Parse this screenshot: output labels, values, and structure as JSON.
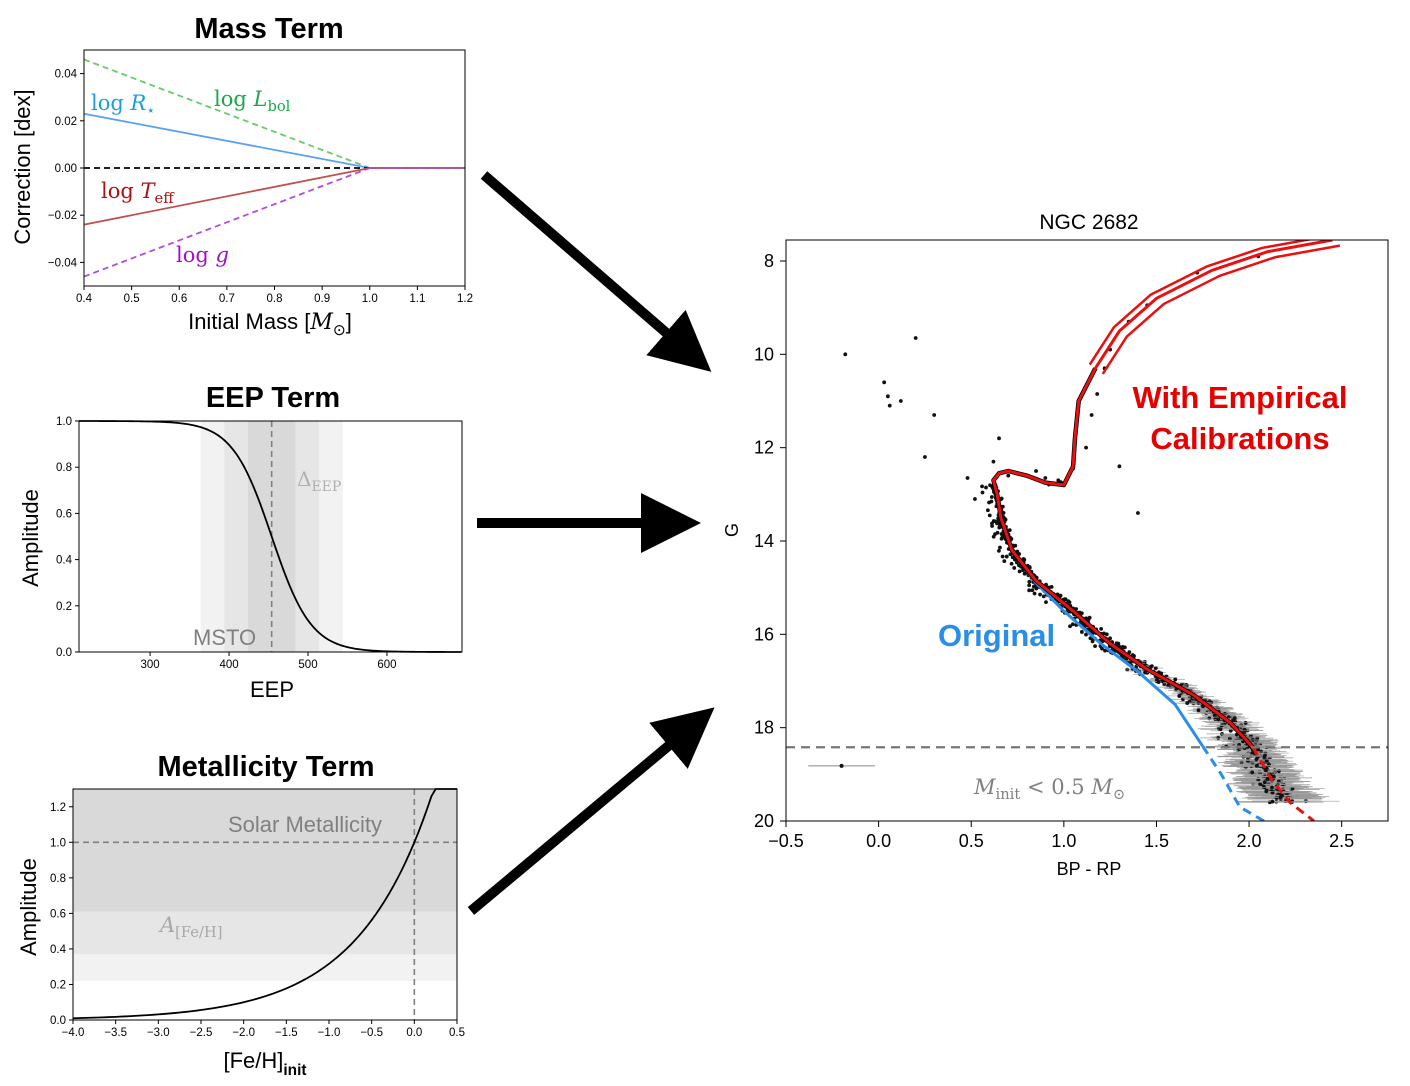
{
  "colors": {
    "blue_line": "#5aa0f0",
    "green_dash": "#66cc66",
    "red_line": "#c0504d",
    "purple_dash": "#b44be0",
    "label_blue": "#1a9fe0",
    "label_green": "#1aa84a",
    "label_red": "#b01010",
    "label_purple": "#a010c8",
    "iso_red": "#e81010",
    "iso_blue": "#2a8de8",
    "annot_red": "#e60000",
    "annot_blue": "#2a8de8"
  },
  "arrows": [
    {
      "name": "mass-to-cmd-arrow"
    },
    {
      "name": "eep-to-cmd-arrow"
    },
    {
      "name": "metallicity-to-cmd-arrow"
    }
  ],
  "chart_data": [
    {
      "id": "mass",
      "type": "line",
      "title": "Mass Term",
      "xlabel": "Initial Mass [M⊙]",
      "xlabel_main": "Initial Mass [",
      "xlabel_sym": "M",
      "xlabel_sub": "⊙",
      "xlabel_end": "]",
      "ylabel": "Correction [dex]",
      "xlim": [
        0.4,
        1.2
      ],
      "ylim": [
        -0.05,
        0.05
      ],
      "xticks": [
        "0.4",
        "0.5",
        "0.6",
        "0.7",
        "0.8",
        "0.9",
        "1.0",
        "1.1",
        "1.2"
      ],
      "yticks": [
        "−0.04",
        "−0.02",
        "0.00",
        "0.02",
        "0.04"
      ],
      "series": [
        {
          "name": "log L_bol",
          "x": [
            0.4,
            1.0,
            1.2
          ],
          "y": [
            0.046,
            0.0,
            0.0
          ],
          "style": "dashed",
          "color_key": "green_dash"
        },
        {
          "name": "log R_⋆",
          "x": [
            0.4,
            1.0,
            1.2
          ],
          "y": [
            0.023,
            0.0,
            0.0
          ],
          "style": "solid",
          "color_key": "blue_line"
        },
        {
          "name": "zero",
          "x": [
            0.4,
            1.2
          ],
          "y": [
            0.0,
            0.0
          ],
          "style": "dashed",
          "color_key": "black"
        },
        {
          "name": "log T_eff",
          "x": [
            0.4,
            1.0,
            1.2
          ],
          "y": [
            -0.024,
            0.0,
            0.0
          ],
          "style": "solid",
          "color_key": "red_line"
        },
        {
          "name": "log g",
          "x": [
            0.4,
            1.0,
            1.2
          ],
          "y": [
            -0.046,
            0.0,
            0.0
          ],
          "style": "dashed",
          "color_key": "purple_dash"
        }
      ],
      "annotations": [
        {
          "id": "lbol",
          "main": "log ",
          "sym": "L",
          "sub": "bol",
          "color_key": "label_green"
        },
        {
          "id": "rstar",
          "main": "log ",
          "sym": "R",
          "sub": "⋆",
          "color_key": "label_blue"
        },
        {
          "id": "teff",
          "main": "log ",
          "sym": "T",
          "sub": "eff",
          "color_key": "label_red"
        },
        {
          "id": "logg",
          "main": "log ",
          "sym": "g",
          "sub": "",
          "color_key": "label_purple"
        }
      ]
    },
    {
      "id": "eep",
      "type": "line",
      "title": "EEP Term",
      "xlabel": "EEP",
      "ylabel": "Amplitude",
      "xlim": [
        210,
        695
      ],
      "ylim": [
        0,
        1
      ],
      "xticks": [
        "300",
        "400",
        "500",
        "600"
      ],
      "yticks": [
        "0.0",
        "0.2",
        "0.4",
        "0.6",
        "0.8",
        "1.0"
      ],
      "center": 454,
      "shade_bands": [
        [
          364,
          544
        ],
        [
          394,
          514
        ],
        [
          424,
          484
        ]
      ],
      "curve": {
        "type": "logistic",
        "center": 454,
        "scale": 25
      },
      "annotations": [
        {
          "id": "msto",
          "text": "MSTO"
        },
        {
          "id": "delta",
          "main": "Δ",
          "sub": "EEP"
        }
      ]
    },
    {
      "id": "metallicity",
      "type": "line",
      "title": "Metallicity Term",
      "xlabel": "[Fe/H]init",
      "xlabel_main": "[Fe/H]",
      "xlabel_sub": "init",
      "ylabel": "Amplitude",
      "xlim": [
        -4.0,
        0.5
      ],
      "ylim": [
        0.0,
        1.3
      ],
      "xticks": [
        "−4.0",
        "−3.5",
        "−3.0",
        "−2.5",
        "−2.0",
        "−1.5",
        "−1.0",
        "−0.5",
        "0.0",
        "0.5"
      ],
      "yticks": [
        "0.0",
        "0.2",
        "0.4",
        "0.6",
        "0.8",
        "1.0",
        "1.2"
      ],
      "shade_bands": [
        0.22,
        0.37,
        0.61
      ],
      "curve": {
        "type": "exponential",
        "form": "10^(0.5*[Fe/H])"
      },
      "annotations": [
        {
          "id": "solar",
          "text": "Solar Metallicity"
        },
        {
          "id": "afeh",
          "main": "A",
          "sub": "[Fe/H]"
        }
      ]
    },
    {
      "id": "cmd",
      "type": "scatter",
      "title": "NGC 2682",
      "xlabel": "BP - RP",
      "ylabel": "G",
      "xlim": [
        -0.5,
        2.75
      ],
      "ylim": [
        20,
        7.55
      ],
      "y_inverted": true,
      "xticks": [
        "−0.5",
        "0.0",
        "0.5",
        "1.0",
        "1.5",
        "2.0",
        "2.5"
      ],
      "yticks": [
        "8",
        "10",
        "12",
        "14",
        "16",
        "18",
        "20"
      ],
      "cutoff_G": 18.42,
      "errorbar_example": {
        "x": -0.2,
        "y": 18.82,
        "xerr": 0.18
      },
      "isochrone_original": [
        [
          1.17,
          10.3
        ],
        [
          1.08,
          11.0
        ],
        [
          1.06,
          11.8
        ],
        [
          1.05,
          12.4
        ],
        [
          1.0,
          12.8
        ],
        [
          0.9,
          12.75
        ],
        [
          0.8,
          12.6
        ],
        [
          0.7,
          12.5
        ],
        [
          0.65,
          12.55
        ],
        [
          0.62,
          12.7
        ],
        [
          0.64,
          13.0
        ],
        [
          0.66,
          13.5
        ],
        [
          0.72,
          14.2
        ],
        [
          0.85,
          14.9
        ],
        [
          1.0,
          15.5
        ],
        [
          1.2,
          16.2
        ],
        [
          1.4,
          16.8
        ],
        [
          1.6,
          17.5
        ],
        [
          1.75,
          18.4
        ]
      ],
      "isochrone_original_dashed": [
        [
          1.75,
          18.4
        ],
        [
          1.85,
          19.0
        ],
        [
          1.95,
          19.7
        ],
        [
          2.08,
          20.0
        ]
      ],
      "isochrone_calibrated": [
        [
          1.17,
          10.3
        ],
        [
          1.08,
          11.0
        ],
        [
          1.06,
          11.8
        ],
        [
          1.05,
          12.4
        ],
        [
          1.0,
          12.8
        ],
        [
          0.9,
          12.75
        ],
        [
          0.8,
          12.6
        ],
        [
          0.7,
          12.5
        ],
        [
          0.65,
          12.55
        ],
        [
          0.62,
          12.7
        ],
        [
          0.64,
          13.0
        ],
        [
          0.66,
          13.5
        ],
        [
          0.72,
          14.2
        ],
        [
          0.85,
          14.85
        ],
        [
          1.05,
          15.5
        ],
        [
          1.25,
          16.2
        ],
        [
          1.45,
          16.75
        ],
        [
          1.7,
          17.3
        ],
        [
          1.9,
          17.9
        ],
        [
          2.02,
          18.42
        ]
      ],
      "isochrone_calibrated_dashed": [
        [
          2.02,
          18.42
        ],
        [
          2.12,
          19.1
        ],
        [
          2.22,
          19.6
        ],
        [
          2.35,
          20.0
        ]
      ],
      "giant_branch": [
        [
          1.17,
          10.3
        ],
        [
          1.3,
          9.5
        ],
        [
          1.5,
          8.8
        ],
        [
          1.8,
          8.2
        ],
        [
          2.1,
          7.8
        ],
        [
          2.45,
          7.55
        ]
      ],
      "annotations": [
        {
          "id": "calib",
          "lines": [
            "With Empirical",
            "Calibrations"
          ],
          "color_key": "annot_red"
        },
        {
          "id": "orig",
          "text": "Original",
          "color_key": "annot_blue"
        },
        {
          "id": "minit",
          "main": "M",
          "sub": "init",
          "mid": " < 0.5 ",
          "sym": "M",
          "sub2": "⊙"
        }
      ]
    }
  ]
}
